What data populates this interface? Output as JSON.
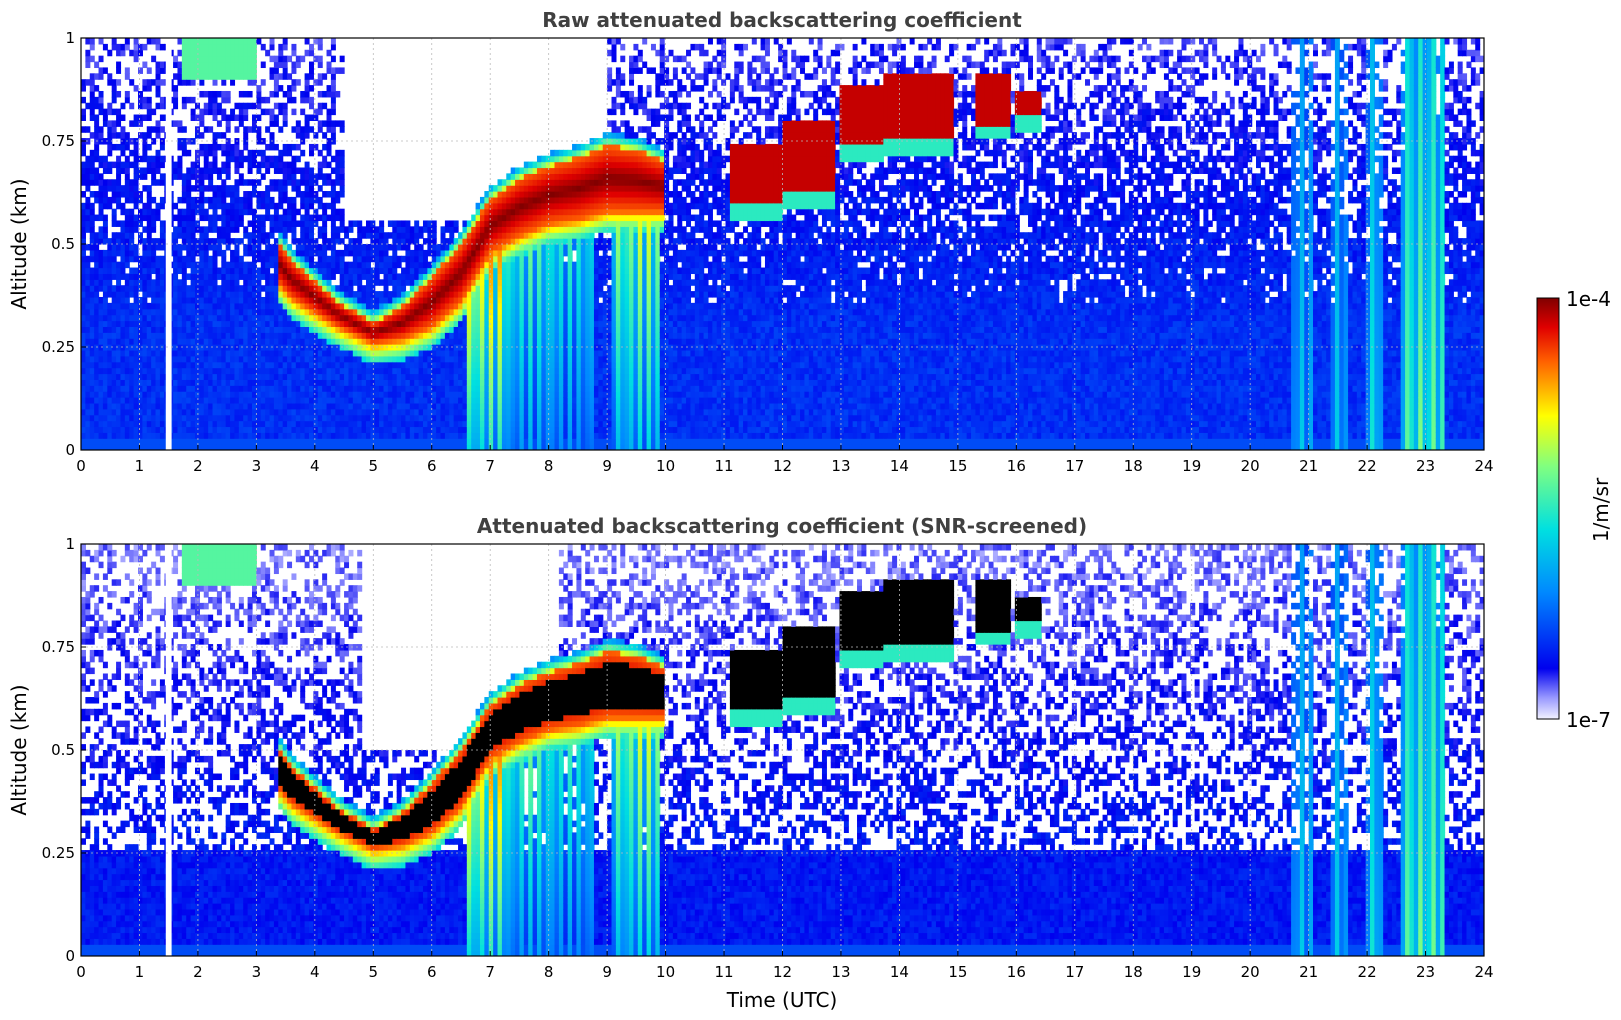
{
  "chart_data": [
    {
      "type": "heatmap",
      "title": "Raw attenuated backscattering coefficient",
      "xlabel": "",
      "ylabel": "Altitude (km)",
      "xlim": [
        0,
        24
      ],
      "ylim": [
        0,
        1
      ],
      "x_ticks": [
        "0",
        "1",
        "2",
        "3",
        "4",
        "5",
        "6",
        "7",
        "8",
        "9",
        "10",
        "11",
        "12",
        "13",
        "14",
        "15",
        "16",
        "17",
        "18",
        "19",
        "20",
        "21",
        "22",
        "23",
        "24"
      ],
      "y_ticks": [
        "0",
        "0.25",
        "0.5",
        "0.75",
        "1"
      ],
      "grid": true,
      "background_level": 0.18,
      "layer": {
        "time": [
          3.35,
          3.6,
          4.4,
          5.0,
          5.5,
          6.0,
          6.5,
          7.0,
          7.5,
          8.0,
          8.5,
          9.0,
          9.5,
          10.0
        ],
        "base_km": [
          0.41,
          0.37,
          0.3,
          0.26,
          0.27,
          0.3,
          0.36,
          0.48,
          0.52,
          0.55,
          0.56,
          0.58,
          0.58,
          0.58
        ],
        "top_km": [
          0.51,
          0.46,
          0.36,
          0.31,
          0.35,
          0.42,
          0.5,
          0.61,
          0.66,
          0.69,
          0.71,
          0.74,
          0.73,
          0.7
        ]
      },
      "upper_clouds": [
        {
          "start": 11.1,
          "end": 12.0,
          "base_km": 0.6,
          "top_km": 0.74
        },
        {
          "start": 12.0,
          "end": 12.9,
          "base_km": 0.63,
          "top_km": 0.8
        },
        {
          "start": 13.0,
          "end": 13.7,
          "base_km": 0.74,
          "top_km": 0.88
        },
        {
          "start": 13.7,
          "end": 14.9,
          "base_km": 0.76,
          "top_km": 0.92
        },
        {
          "start": 15.3,
          "end": 15.9,
          "base_km": 0.79,
          "top_km": 0.92
        },
        {
          "start": 16.0,
          "end": 16.4,
          "base_km": 0.81,
          "top_km": 0.87
        }
      ],
      "precip_streaks": [
        {
          "start": 6.6,
          "end": 7.3,
          "level": 0.7
        },
        {
          "start": 7.3,
          "end": 8.2,
          "level": 0.5
        },
        {
          "start": 8.2,
          "end": 8.8,
          "level": 0.45
        },
        {
          "start": 9.1,
          "end": 9.9,
          "level": 0.6
        },
        {
          "start": 20.7,
          "end": 21.1,
          "level": 0.35
        },
        {
          "start": 21.4,
          "end": 21.7,
          "level": 0.35
        },
        {
          "start": 22.0,
          "end": 22.3,
          "level": 0.4
        },
        {
          "start": 22.6,
          "end": 23.3,
          "level": 0.5
        }
      ]
    },
    {
      "type": "heatmap",
      "title": "Attenuated backscattering coefficient (SNR-screened)",
      "xlabel": "Time (UTC)",
      "ylabel": "Altitude (km)",
      "xlim": [
        0,
        24
      ],
      "ylim": [
        0,
        1
      ],
      "x_ticks": [
        "0",
        "1",
        "2",
        "3",
        "4",
        "5",
        "6",
        "7",
        "8",
        "9",
        "10",
        "11",
        "12",
        "13",
        "14",
        "15",
        "16",
        "17",
        "18",
        "19",
        "20",
        "21",
        "22",
        "23",
        "24"
      ],
      "y_ticks": [
        "0",
        "0.25",
        "0.5",
        "0.75",
        "1"
      ],
      "grid": true,
      "background_level": 0.15,
      "screened_above_km": 0.25,
      "saturated_color": "#000000"
    }
  ],
  "colorbar": {
    "label": "1/m/sr",
    "max_label": "1e-4",
    "min_label": "1e-7",
    "colormap": "jet"
  },
  "colors": {
    "background": "#ffffff",
    "grid": "#bbbbbb",
    "title": "#404040",
    "saturated": "#000000"
  }
}
